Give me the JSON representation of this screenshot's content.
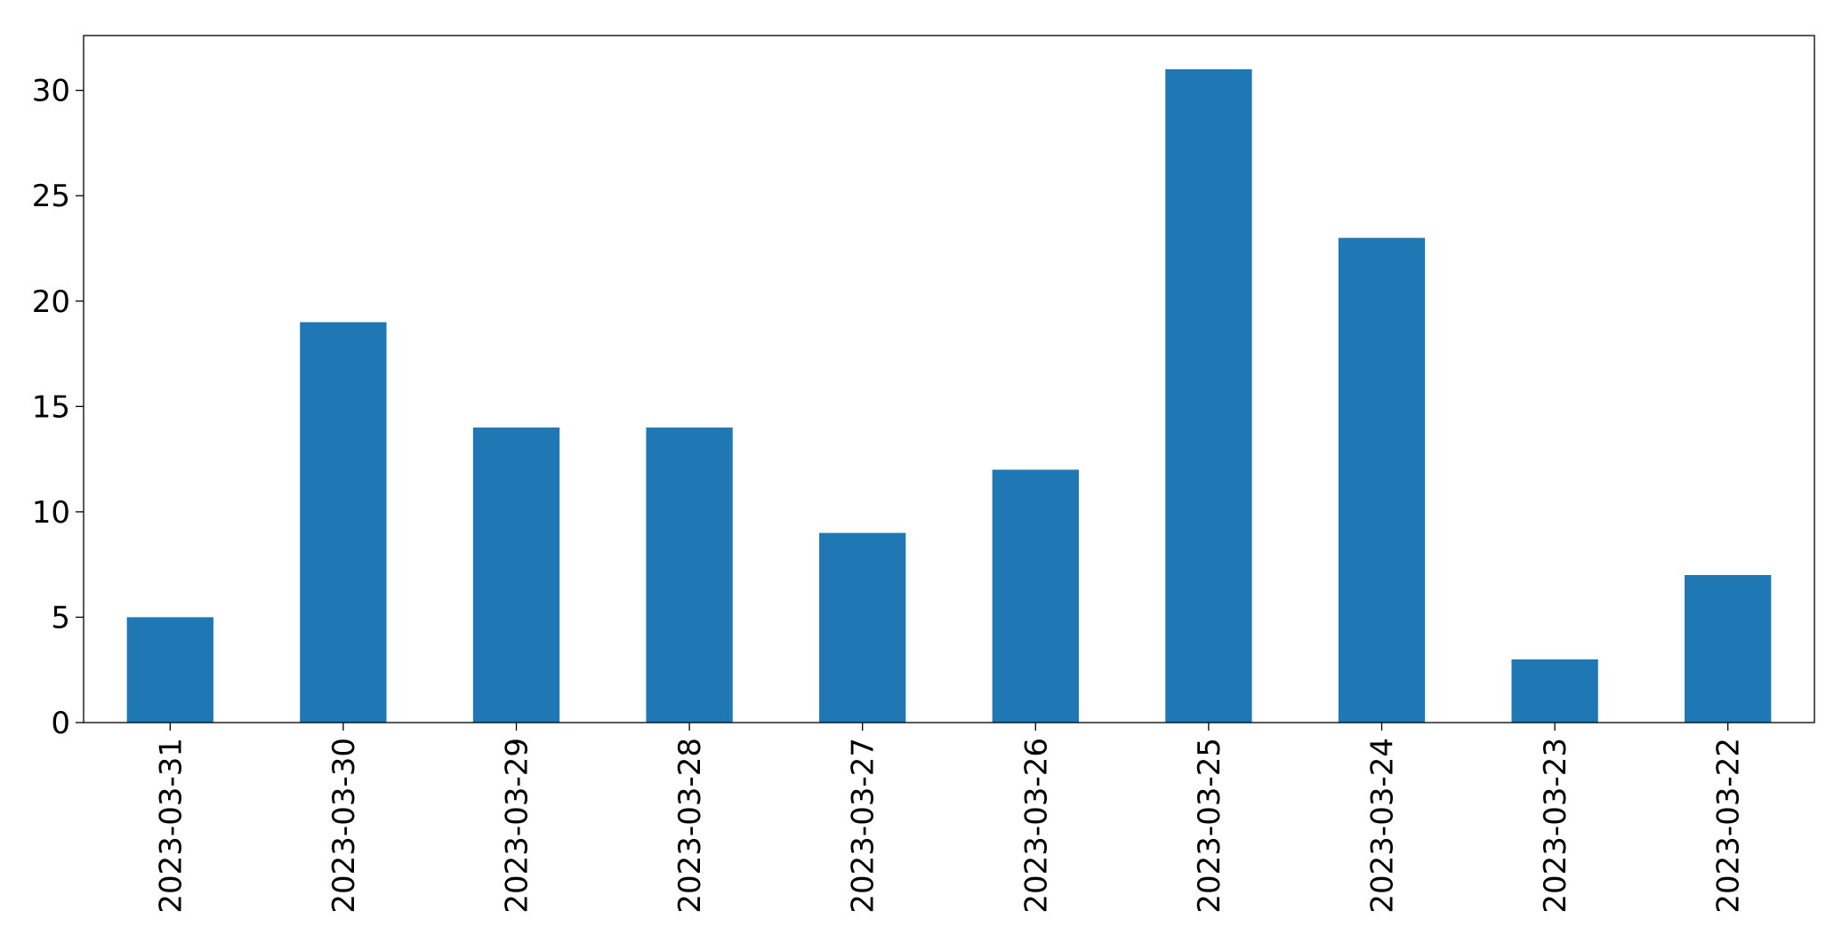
{
  "chart_data": {
    "type": "bar",
    "title": "",
    "xlabel": "",
    "ylabel": "",
    "categories": [
      "2023-03-31",
      "2023-03-30",
      "2023-03-29",
      "2023-03-28",
      "2023-03-27",
      "2023-03-26",
      "2023-03-25",
      "2023-03-24",
      "2023-03-23",
      "2023-03-22"
    ],
    "values": [
      5,
      19,
      14,
      14,
      9,
      12,
      31,
      23,
      3,
      7
    ],
    "ylim": [
      0,
      32.6
    ],
    "yticks": [
      0,
      5,
      10,
      15,
      20,
      25,
      30
    ],
    "grid": false,
    "legend": "none",
    "bar_color": "#1f77b4"
  }
}
